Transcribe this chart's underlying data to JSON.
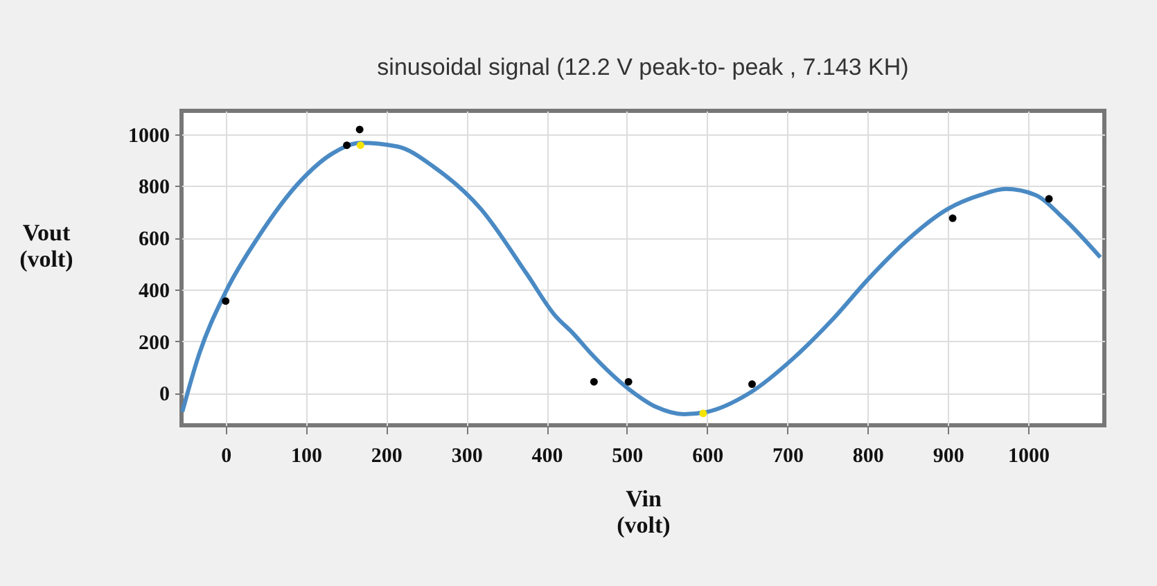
{
  "chart_data": {
    "type": "line",
    "title": "sinusoidal signal (12.2 V peak-to- peak , 7.143 KH)",
    "xlabel": "Vin (volt)",
    "ylabel": "Vout (volt)",
    "xlim": [
      -55,
      1095
    ],
    "ylim": [
      -125,
      1090
    ],
    "xticks": [
      0,
      100,
      200,
      300,
      400,
      500,
      600,
      700,
      800,
      900,
      1000
    ],
    "yticks": [
      0,
      200,
      400,
      600,
      800,
      1000
    ],
    "grid": true,
    "series": [
      {
        "color": "#4a8ac4",
        "marker": "none",
        "line_style": "solid",
        "x": [
          -54,
          -34,
          0,
          41,
          93,
          133,
          168,
          214,
          260,
          318,
          375,
          410,
          433,
          456,
          502,
          537,
          571,
          600,
          652,
          710,
          756,
          802,
          848,
          900,
          941,
          972,
          1009,
          1044,
          1090
        ],
        "values": [
          -73,
          141,
          390,
          604,
          818,
          925,
          966,
          952,
          872,
          711,
          461,
          301,
          230,
          150,
          16,
          -55,
          -82,
          -73,
          -2,
          141,
          283,
          444,
          587,
          711,
          765,
          788,
          765,
          675,
          524
        ]
      },
      {
        "type": "scatter",
        "color": "#000000",
        "marker": "circle",
        "x": [
          0,
          151,
          167,
          459,
          502,
          656,
          906,
          1026
        ],
        "values": [
          355,
          957,
          1018,
          43,
          43,
          34,
          675,
          750
        ]
      },
      {
        "type": "scatter",
        "color": "#f5e400",
        "marker": "circle",
        "x": [
          168,
          595
        ],
        "values": [
          957,
          -79
        ]
      }
    ]
  }
}
